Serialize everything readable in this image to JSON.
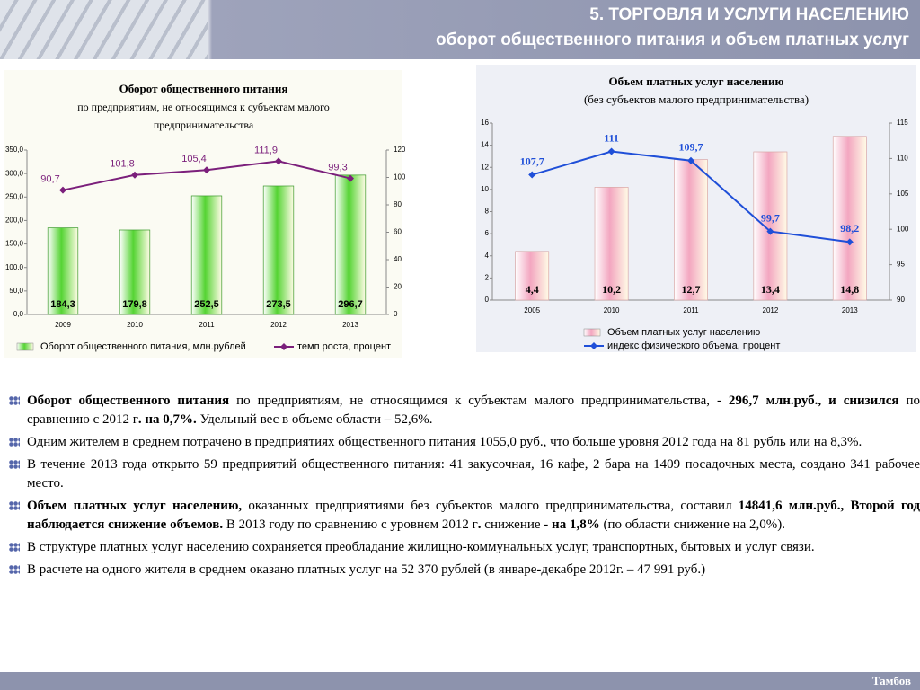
{
  "header": {
    "title": "5. ТОРГОВЛЯ И УСЛУГИ НАСЕЛЕНИЮ",
    "subtitle": "оборот общественного питания и объем платных услуг"
  },
  "chart_data": [
    {
      "type": "bar",
      "title": "Оборот общественного питания",
      "subtitle": [
        "по предприятиям, не относящимся к субъектам малого",
        "предпринимательства"
      ],
      "categories": [
        "2009",
        "2010",
        "2011",
        "2012",
        "2013"
      ],
      "series": [
        {
          "name": "Оборот общественного питания, млн.рублей",
          "color": "#55d433",
          "type": "bar",
          "values": [
            184.3,
            179.8,
            252.5,
            273.5,
            296.7
          ],
          "value_labels": [
            "184,3",
            "179,8",
            "252,5",
            "273,5",
            "296,7"
          ]
        },
        {
          "name": "темп роста, процент",
          "color": "#7b1f7b",
          "type": "line",
          "axis": "y2",
          "values": [
            90.7,
            101.8,
            105.4,
            111.9,
            99.3
          ],
          "value_labels": [
            "90,7",
            "101,8",
            "105,4",
            "111,9",
            "99,3"
          ]
        }
      ],
      "ylim": [
        0,
        350
      ],
      "yticks": [
        {
          "value": 0,
          "label": "0,0"
        },
        {
          "value": 50,
          "label": "50,0"
        },
        {
          "value": 100,
          "label": "100,0"
        },
        {
          "value": 150,
          "label": "150,0"
        },
        {
          "value": 200,
          "label": "200,0"
        },
        {
          "value": 250,
          "label": "250,0"
        },
        {
          "value": 300,
          "label": "300,0"
        },
        {
          "value": 350,
          "label": "350,0"
        }
      ],
      "y2lim": [
        0,
        120
      ],
      "y2ticks": [
        0,
        20,
        40,
        60,
        80,
        100,
        120
      ],
      "legend": "bottom"
    },
    {
      "type": "bar",
      "title": "Объем платных услуг населению",
      "subtitle": [
        "(без субъектов малого предпринимательства)"
      ],
      "categories": [
        "2005",
        "2010",
        "2011",
        "2012",
        "2013"
      ],
      "series": [
        {
          "name": "Объем платных услуг населению",
          "color": "#f3a6c0",
          "type": "bar",
          "values": [
            4.4,
            10.2,
            12.7,
            13.4,
            14.8
          ],
          "value_labels": [
            "4,4",
            "10,2",
            "12,7",
            "13,4",
            "14,8"
          ]
        },
        {
          "name": "индекс физического объема, процент",
          "color": "#1f4fd8",
          "type": "line",
          "axis": "y2",
          "values": [
            107.7,
            111,
            109.7,
            99.7,
            98.2
          ],
          "value_labels": [
            "107,7",
            "111",
            "109,7",
            "99,7",
            "98,2"
          ]
        }
      ],
      "ylim": [
        0,
        16
      ],
      "yticks": [
        0,
        2,
        4,
        6,
        8,
        10,
        12,
        14,
        16
      ],
      "y2lim": [
        90,
        115
      ],
      "y2ticks": [
        90,
        95,
        100,
        105,
        110,
        115
      ],
      "legend": "bottom"
    }
  ],
  "paragraphs": [
    [
      {
        "text": "Оборот общественного питания",
        "bold": true
      },
      " по предприятиям, не относящимся к субъектам малого предпринимательства, - ",
      {
        "text": "296,7 млн.руб., и снизился",
        "bold": true
      },
      " по сравнению с 2012 г",
      {
        "text": ". на 0,7%.",
        "bold": true
      },
      " Удельный вес в объеме области – 52,6%."
    ],
    [
      "Одним жителем в среднем потрачено в предприятиях общественного питания 1055,0 руб., что больше уровня 2012 года на 81 рубль или на 8,3%."
    ],
    [
      "В течение 2013 года открыто 59 предприятий общественного питания: 41 закусочная, 16 кафе, 2 бара на 1409 посадочных места, создано 341 рабочее место."
    ],
    [
      {
        "text": "Объем платных услуг населению,",
        "bold": true
      },
      " оказанных предприятиями без субъектов малого предпринимательства, составил ",
      {
        "text": "14841,6 млн.руб., Второй год наблюдается снижение объемов.",
        "bold": true
      },
      " В 2013 году по сравнению с уровнем 2012 г",
      {
        "text": ".",
        "bold": true
      },
      " снижение - ",
      {
        "text": "на 1,8%",
        "bold": true
      },
      "  (по области снижение на 2,0%)."
    ],
    [
      "В структуре платных услуг населению сохраняется преобладание жилищно-коммунальных услуг, транспортных, бытовых и услуг связи."
    ],
    [
      "В расчете на одного жителя в среднем оказано платных  услуг на 52 370 рублей (в январе-декабре 2012г. – 47 991 руб.)"
    ]
  ],
  "footer": "Тамбов"
}
